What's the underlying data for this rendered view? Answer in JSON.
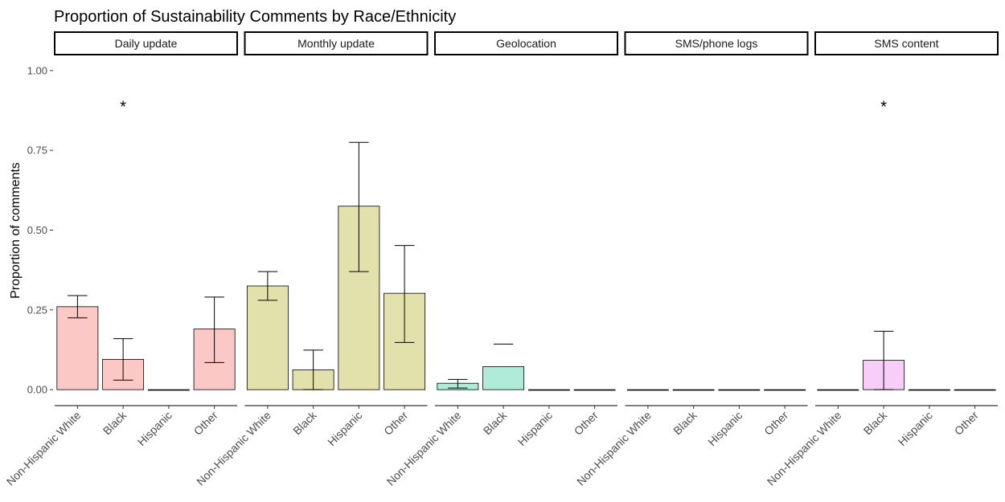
{
  "chart_data": {
    "type": "bar",
    "title": "Proportion of Sustainability Comments by Race/Ethnicity",
    "ylabel": "Proportion of comments",
    "xlabel": "",
    "ylim": [
      -0.05,
      1.05
    ],
    "yticks": [
      0.0,
      0.25,
      0.5,
      0.75,
      1.0
    ],
    "ytick_labels": [
      "0.00",
      "0.25",
      "0.50",
      "0.75",
      "1.00"
    ],
    "categories": [
      "Non-Hispanic White",
      "Black",
      "Hispanic",
      "Other"
    ],
    "grid": false,
    "legend": "none",
    "significance_marker": "*",
    "panels": [
      {
        "name": "Daily update",
        "color": "#F8766D",
        "values": [
          0.26,
          0.095,
          0.0,
          0.19
        ],
        "err_low": [
          0.225,
          0.03,
          null,
          0.085
        ],
        "err_high": [
          0.295,
          0.16,
          null,
          0.29
        ],
        "significant": [
          false,
          true,
          false,
          false
        ]
      },
      {
        "name": "Monthly update",
        "color": "#B7B42F",
        "values": [
          0.325,
          0.062,
          0.575,
          0.302
        ],
        "err_low": [
          0.28,
          0.0,
          0.37,
          0.148
        ],
        "err_high": [
          0.37,
          0.124,
          0.775,
          0.452
        ],
        "significant": [
          false,
          false,
          false,
          false
        ]
      },
      {
        "name": "Geolocation",
        "color": "#36CC9E",
        "values": [
          0.02,
          0.072,
          0.0,
          0.0
        ],
        "err_low": [
          0.005,
          null,
          null,
          null
        ],
        "err_high": [
          0.032,
          0.143,
          null,
          null
        ],
        "significant": [
          false,
          false,
          false,
          false
        ]
      },
      {
        "name": "SMS/phone logs",
        "color": "#619CFF",
        "values": [
          0.0,
          0.0,
          0.0,
          0.0
        ],
        "err_low": [
          null,
          null,
          null,
          null
        ],
        "err_high": [
          null,
          null,
          null,
          null
        ],
        "significant": [
          false,
          false,
          false,
          false
        ]
      },
      {
        "name": "SMS content",
        "color": "#EE82EE",
        "values": [
          0.0,
          0.092,
          0.0,
          0.0
        ],
        "err_low": [
          null,
          0.0,
          null,
          null
        ],
        "err_high": [
          null,
          0.183,
          null,
          null
        ],
        "significant": [
          false,
          true,
          false,
          false
        ]
      }
    ]
  }
}
